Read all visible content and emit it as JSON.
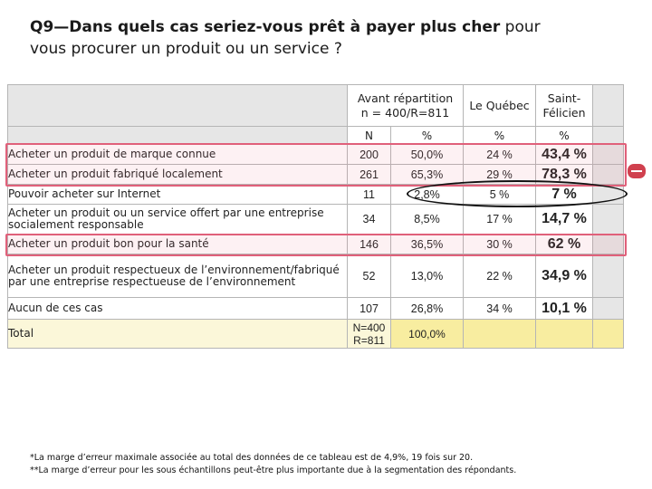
{
  "title": {
    "bold": "Q9—Dans quels cas seriez-vous prêt à payer plus cher",
    "rest": " pour vous procurer un produit ou un service ?"
  },
  "table": {
    "headers": {
      "avant_line1": "Avant répartition",
      "avant_line2": "n = 400/R=811",
      "quebec": "Le Québec",
      "stfelicien_line1": "Saint-",
      "stfelicien_line2": "Félicien"
    },
    "subheaders": [
      "N",
      "%",
      "%",
      "%"
    ],
    "rows": [
      {
        "label": "Acheter un produit de marque connue",
        "n": "200",
        "pct": "50,0%",
        "qc": "24 %",
        "sf": "43,4 %"
      },
      {
        "label": "Acheter un produit fabriqué localement",
        "n": "261",
        "pct": "65,3%",
        "qc": "29 %",
        "sf": "78,3 %"
      },
      {
        "label": "Pouvoir acheter sur Internet",
        "n": "11",
        "pct": "2,8%",
        "qc": "5 %",
        "sf": "7 %"
      },
      {
        "label": "Acheter un produit ou un service offert par une entreprise socialement responsable",
        "n": "34",
        "pct": "8,5%",
        "qc": "17 %",
        "sf": "14,7 %"
      },
      {
        "label": "Acheter un produit bon pour la santé",
        "n": "146",
        "pct": "36,5%",
        "qc": "30 %",
        "sf": "62 %"
      },
      {
        "label": "Acheter un produit respectueux de l’environnement/fabriqué par une entreprise respectueuse de l’environnement",
        "n": "52",
        "pct": "13,0%",
        "qc": "22 %",
        "sf": "34,9 %"
      },
      {
        "label": "Aucun de ces cas",
        "n": "107",
        "pct": "26,8%",
        "qc": "34 %",
        "sf": "10,1 %"
      }
    ],
    "total": {
      "label": "Total",
      "n_line1": "N=400",
      "n_line2": "R=811",
      "pct": "100,0%"
    }
  },
  "footnotes": [
    "*La marge d’erreur maximale associée au total des données de ce tableau est de 4,9%, 19 fois sur 20.",
    "**La marge d’erreur pour les sous échantillons peut-être plus importante due à la segmentation des répondants."
  ],
  "colors": {
    "highlight_red": "#e0607a",
    "header_gray": "#e6e6e6",
    "cream": "#fbf7d9",
    "total_yellow": "#f8eda0"
  }
}
